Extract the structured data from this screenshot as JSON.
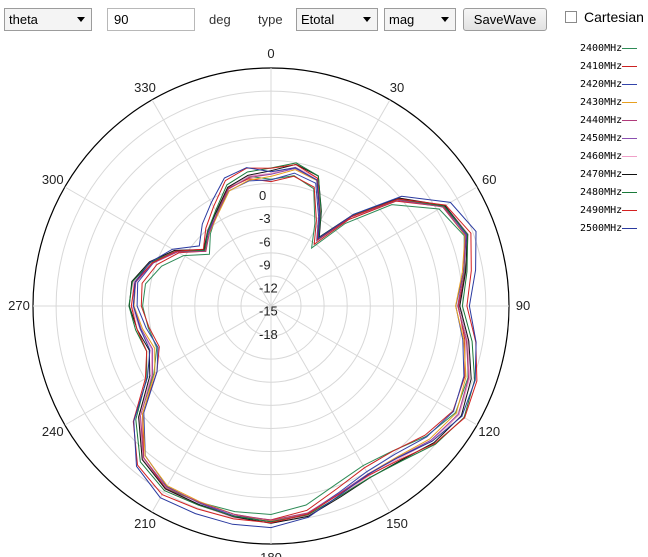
{
  "toolbar": {
    "axis_select": "theta",
    "angle_value": "90",
    "angle_unit": "deg",
    "type_label": "type",
    "type_select": "Etotal",
    "mode_select": "mag",
    "save_button": "SaveWave",
    "cartesian_label": "Cartesian",
    "cartesian_checked": false
  },
  "chart_data": {
    "type": "polar-line",
    "radial_ticks": [
      "0",
      "-3",
      "-6",
      "-9",
      "-12",
      "-15",
      "-18"
    ],
    "radial_range": [
      -18,
      0
    ],
    "angle_ticks": [
      "0",
      "30",
      "60",
      "90",
      "120",
      "150",
      "180",
      "210",
      "240",
      "270",
      "300",
      "330"
    ],
    "grid": true,
    "legend_placement": "right",
    "series": [
      {
        "name": "2400MHz",
        "color": "#2e8b57"
      },
      {
        "name": "2410MHz",
        "color": "#cc2222"
      },
      {
        "name": "2420MHz",
        "color": "#3344aa"
      },
      {
        "name": "2430MHz",
        "color": "#e8a020"
      },
      {
        "name": "2440MHz",
        "color": "#b03a7a"
      },
      {
        "name": "2450MHz",
        "color": "#8a4fb0"
      },
      {
        "name": "2460MHz",
        "color": "#f0a0c8"
      },
      {
        "name": "2470MHz",
        "color": "#111111"
      },
      {
        "name": "2480MHz",
        "color": "#1a7a3a"
      },
      {
        "name": "2490MHz",
        "color": "#d42020"
      },
      {
        "name": "2500MHz",
        "color": "#2a3aa0"
      }
    ],
    "pattern_db": [
      {
        "angle": 0,
        "value": -9.0
      },
      {
        "angle": 10,
        "value": -8.3
      },
      {
        "angle": 20,
        "value": -8.8
      },
      {
        "angle": 28,
        "value": -11.5
      },
      {
        "angle": 35,
        "value": -13.5
      },
      {
        "angle": 42,
        "value": -10.0
      },
      {
        "angle": 50,
        "value": -6.0
      },
      {
        "angle": 60,
        "value": -3.0
      },
      {
        "angle": 70,
        "value": -2.2
      },
      {
        "angle": 80,
        "value": -3.2
      },
      {
        "angle": 90,
        "value": -4.0
      },
      {
        "angle": 100,
        "value": -3.0
      },
      {
        "angle": 110,
        "value": -2.0
      },
      {
        "angle": 120,
        "value": -1.5
      },
      {
        "angle": 130,
        "value": -2.2
      },
      {
        "angle": 140,
        "value": -3.2
      },
      {
        "angle": 150,
        "value": -3.5
      },
      {
        "angle": 160,
        "value": -3.0
      },
      {
        "angle": 170,
        "value": -2.0
      },
      {
        "angle": 180,
        "value": -1.6
      },
      {
        "angle": 190,
        "value": -1.8
      },
      {
        "angle": 200,
        "value": -2.0
      },
      {
        "angle": 210,
        "value": -2.0
      },
      {
        "angle": 220,
        "value": -3.0
      },
      {
        "angle": 230,
        "value": -5.5
      },
      {
        "angle": 240,
        "value": -8.5
      },
      {
        "angle": 250,
        "value": -9.5
      },
      {
        "angle": 260,
        "value": -9.0
      },
      {
        "angle": 270,
        "value": -8.5
      },
      {
        "angle": 280,
        "value": -8.5
      },
      {
        "angle": 290,
        "value": -9.5
      },
      {
        "angle": 300,
        "value": -11.0
      },
      {
        "angle": 310,
        "value": -13.0
      },
      {
        "angle": 320,
        "value": -12.0
      },
      {
        "angle": 330,
        "value": -11.0
      },
      {
        "angle": 340,
        "value": -9.5
      },
      {
        "angle": 350,
        "value": -9.0
      }
    ]
  }
}
